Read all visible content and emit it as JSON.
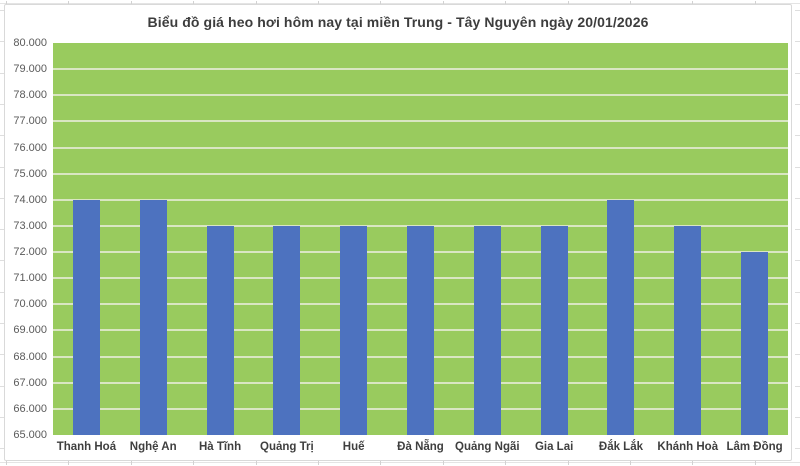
{
  "chart_data": {
    "type": "bar",
    "title": "Biểu đồ giá heo hơi hôm nay tại miền Trung - Tây Nguyên ngày 20/01/2026",
    "categories": [
      "Thanh Hoá",
      "Nghệ An",
      "Hà Tĩnh",
      "Quảng Trị",
      "Huế",
      "Đà Nẵng",
      "Quảng Ngãi",
      "Gia Lai",
      "Đắk Lắk",
      "Khánh Hoà",
      "Lâm Đồng"
    ],
    "values": [
      74000,
      74000,
      73000,
      73000,
      73000,
      73000,
      73000,
      73000,
      74000,
      73000,
      72000
    ],
    "xlabel": "",
    "ylabel": "",
    "ylim": [
      65000,
      80000
    ],
    "y_step": 1000,
    "y_tick_labels": [
      "80.000",
      "79.000",
      "78.000",
      "77.000",
      "76.000",
      "75.000",
      "74.000",
      "73.000",
      "72.000",
      "71.000",
      "70.000",
      "69.000",
      "68.000",
      "67.000",
      "66.000",
      "65.000"
    ],
    "grid": "horizontal",
    "legend": "none",
    "colors": {
      "bar": "#4d72bf",
      "plot_background": "#99cb5e",
      "gridline": "#d9e6c2",
      "chart_border": "#d9d9d9",
      "title_text": "#3d3d3d",
      "axis_text": "#5a5a5a",
      "category_text": "#3f3f3f"
    }
  }
}
